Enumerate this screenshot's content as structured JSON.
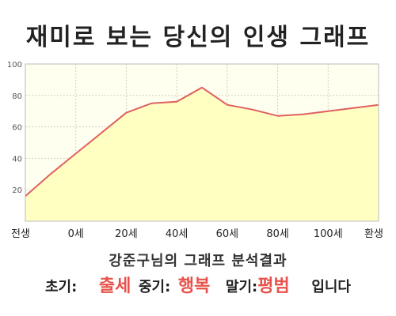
{
  "title": "재미로 보는 당신의 인생 그래프",
  "subtitle": "강준구님의 그래프 분석결과",
  "summary": {
    "early_label": "초기:",
    "early_value": "출세",
    "mid_label": "중기:",
    "mid_value": "행복",
    "late_label": "말기:",
    "late_value": "평범",
    "ending": "입니다"
  },
  "colors": {
    "line": "#e06060",
    "fill": "#ffffc2",
    "plot_bg": "#fffff0",
    "grid": "#d0d0c0",
    "accent": "#e8524a"
  },
  "chart_data": {
    "type": "area",
    "title": "",
    "xlabel": "",
    "ylabel": "",
    "ylim": [
      0,
      100
    ],
    "yticks": [
      20,
      40,
      60,
      80,
      100
    ],
    "grid": true,
    "xtick_labels": [
      "전생",
      "0세",
      "20세",
      "40세",
      "60세",
      "80세",
      "100세",
      "환생"
    ],
    "series": [
      {
        "x": [
          0,
          0.5,
          1,
          1.5,
          2,
          2.5,
          3,
          3.5,
          4,
          4.5,
          5,
          5.5,
          6,
          6.5,
          7
        ],
        "values": [
          16,
          30,
          43,
          56,
          69,
          75,
          76,
          85,
          74,
          71,
          67,
          68,
          70,
          72,
          74
        ]
      }
    ]
  }
}
